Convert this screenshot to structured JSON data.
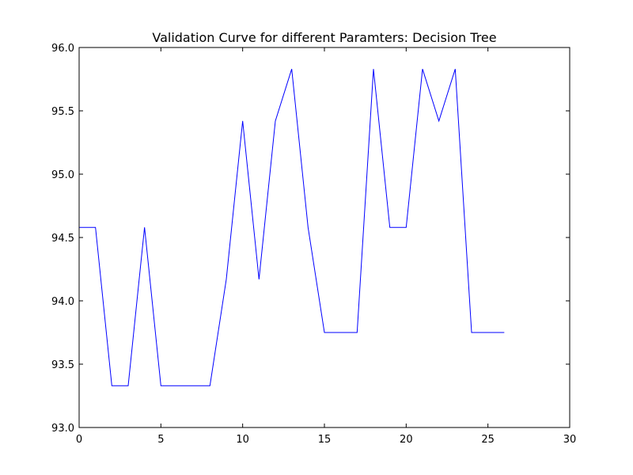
{
  "chart_data": {
    "type": "line",
    "title": "Validation Curve for different Paramters: Decision Tree",
    "xlabel": "",
    "ylabel": "",
    "xlim": [
      0,
      30
    ],
    "ylim": [
      93.0,
      96.0
    ],
    "x_ticks": [
      "0",
      "5",
      "10",
      "15",
      "20",
      "25",
      "30"
    ],
    "y_ticks": [
      "93.0",
      "93.5",
      "94.0",
      "94.5",
      "95.0",
      "95.5",
      "96.0"
    ],
    "grid": false,
    "series": [
      {
        "color": "#0000ff",
        "x": [
          0,
          1,
          2,
          3,
          4,
          5,
          6,
          7,
          8,
          9,
          10,
          11,
          12,
          13,
          14,
          15,
          16,
          17,
          18,
          19,
          20,
          21,
          22,
          23,
          24,
          25,
          26
        ],
        "values": [
          94.58,
          94.58,
          93.33,
          93.33,
          94.58,
          93.33,
          93.33,
          93.33,
          93.33,
          94.17,
          95.42,
          94.17,
          95.42,
          95.83,
          94.58,
          93.75,
          93.75,
          93.75,
          95.83,
          94.58,
          94.58,
          95.83,
          95.42,
          95.83,
          93.75,
          93.75,
          93.75
        ]
      }
    ]
  }
}
